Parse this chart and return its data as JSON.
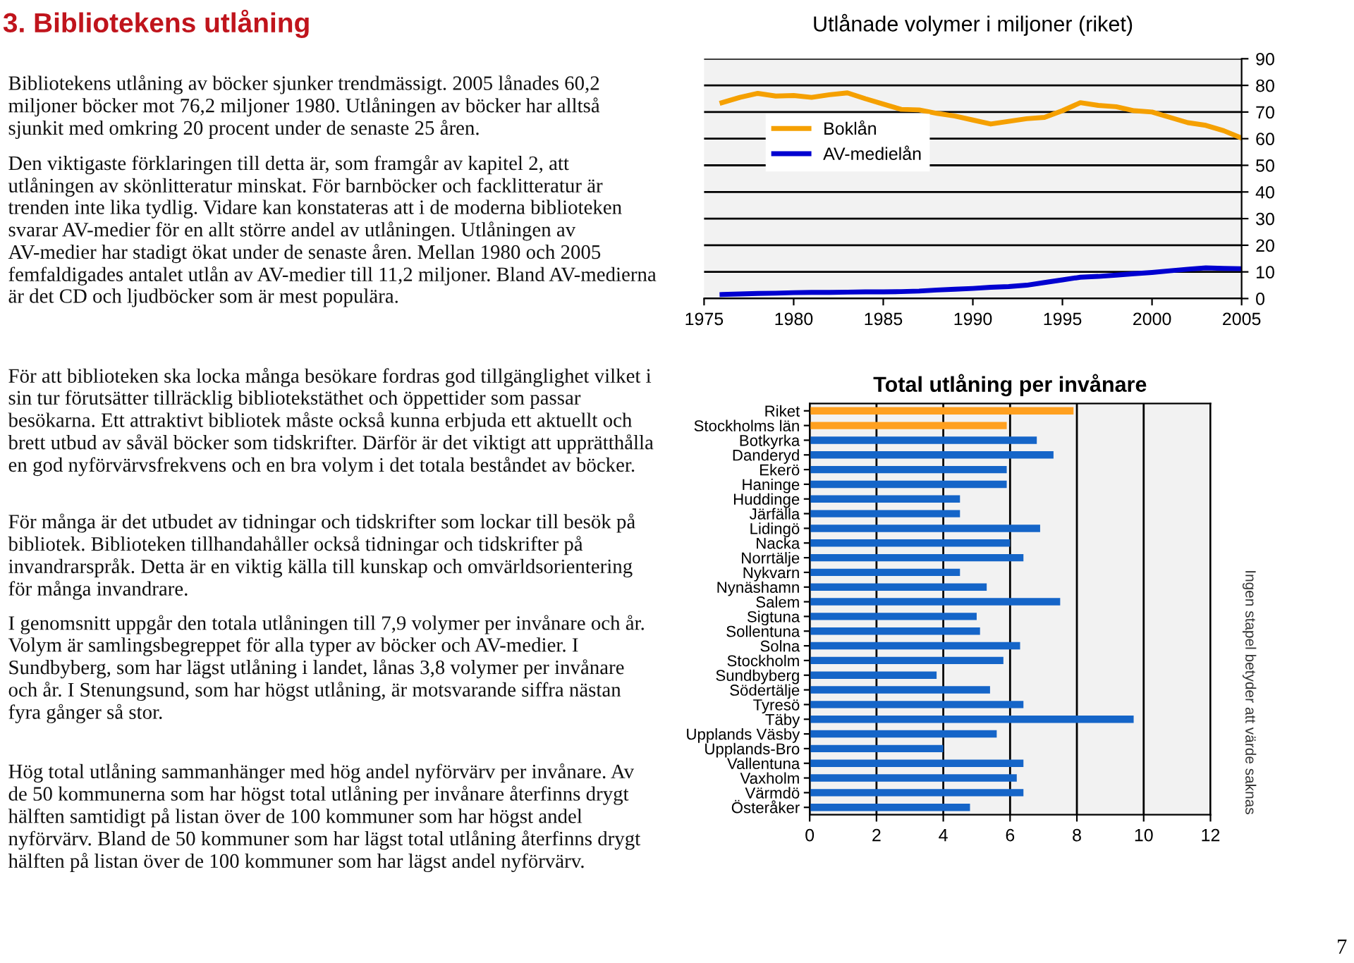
{
  "chart_data": [
    {
      "type": "other",
      "title": "3. Bibliotekens utlåning",
      "annotations": [
        "Bibliotekens utlåning av böcker sjunker trendmässigt. 2005 lånades 60,2 miljoner böcker mot 76,2 miljoner 1980. Utlåningen av böcker har alltså sjunkit med omkring 20 procent under de senaste 25 åren.",
        "Den viktigaste förklaringen till detta är, som framgår av kapitel 2, att utlåningen av skönlitteratur minskat. För barnböcker och facklitteratur är trenden inte lika tydlig. Vidare kan konstateras att i de moderna biblioteken svarar AV-medier för en allt större andel av utlåningen. Utlåningen av AV-medier har stadigt ökat under de senaste åren. Mellan 1980 och 2005 femfaldigades antalet utlån av AV-medier till 11,2 miljoner. Bland AV-medierna är det CD och ljudböcker som är mest populära.",
        "För att biblioteken ska locka många besökare fordras god tillgänglighet vilket i sin tur förutsätter tillräcklig bibliotekstäthet och öppettider som passar besökarna. Ett attraktivt bibliotek måste också kunna erbjuda ett aktuellt och brett utbud av såväl böcker som tidskrifter. Därför är det viktigt att upprätthålla en god nyförvärvsfrekvens och en bra volym i det totala beståndet av böcker.",
        "För många är det utbudet av tidningar och tidskrifter som lockar till besök på bibliotek. Biblioteken tillhandahåller också tidningar och tidskrifter på invandrarspråk. Detta är en viktig källa till kunskap och omvärldsorientering för många invandrare.",
        "I genomsnitt uppgår den totala utlåningen till 7,9 volymer per invånare och år. Volym är samlingsbegreppet för alla typer av böcker och AV-medier. I Sundbyberg, som har lägst utlåning i landet, lånas 3,8 volymer per invånare och år. I Stenungsund, som har högst utlåning, är motsvarande siffra nästan fyra gånger så stor.",
        "Hög total utlåning sammanhänger med hög andel nyförvärv per invånare. Av de 50 kommunerna som har högst total utlåning per invånare återfinns drygt hälften samtidigt på listan över de 100 kommuner som har högst andel nyförvärv. Bland de 50 kommuner som har lägst total utlåning återfinns drygt hälften på listan över de 100 kommuner som har lägst andel nyförvärv.",
        "7"
      ]
    },
    {
      "type": "line",
      "title": "Utlånade volymer i miljoner (riket)",
      "x": [
        1976,
        1977,
        1978,
        1979,
        1980,
        1981,
        1982,
        1983,
        1984,
        1985,
        1986,
        1987,
        1988,
        1989,
        1990,
        1991,
        1992,
        1993,
        1994,
        1995,
        1996,
        1997,
        1998,
        1999,
        2000,
        2001,
        2002,
        2003,
        2004,
        2005
      ],
      "series": [
        {
          "name": "Boklån",
          "color": "#f5a000",
          "values": [
            73.5,
            75.5,
            77,
            76,
            76.2,
            75.5,
            76.5,
            77.2,
            75,
            73,
            71,
            70.8,
            69.5,
            68.5,
            67,
            65.5,
            66.5,
            67.5,
            68,
            70.5,
            73.5,
            72.5,
            72,
            70.5,
            70,
            68,
            66,
            65,
            63,
            60.2
          ]
        },
        {
          "name": "AV-medielån",
          "color": "#0000d0",
          "values": [
            1.5,
            1.7,
            1.9,
            2,
            2.2,
            2.3,
            2.3,
            2.4,
            2.5,
            2.5,
            2.6,
            2.8,
            3.2,
            3.5,
            3.8,
            4.2,
            4.5,
            5,
            6,
            7,
            8,
            8.3,
            8.8,
            9.3,
            9.8,
            10.4,
            11,
            11.5,
            11.3,
            11.2
          ]
        }
      ],
      "xlim": [
        1975,
        2005
      ],
      "xticks": [
        1975,
        1980,
        1985,
        1990,
        1995,
        2000,
        2005
      ],
      "ylim": [
        0,
        90
      ],
      "yticks": [
        0,
        10,
        20,
        30,
        40,
        50,
        60,
        70,
        80,
        90
      ],
      "grid": "y",
      "legend": "left",
      "line_style": "solid",
      "marker": "none"
    },
    {
      "type": "bar",
      "orientation": "horizontal",
      "title": "Total utlåning per invånare",
      "categories": [
        "Riket",
        "Stockholms län",
        "Botkyrka",
        "Danderyd",
        "Ekerö",
        "Haninge",
        "Huddinge",
        "Järfälla",
        "Lidingö",
        "Nacka",
        "Norrtälje",
        "Nykvarn",
        "Nynäshamn",
        "Salem",
        "Sigtuna",
        "Sollentuna",
        "Solna",
        "Stockholm",
        "Sundbyberg",
        "Södertälje",
        "Tyresö",
        "Täby",
        "Upplands Väsby",
        "Upplands-Bro",
        "Vallentuna",
        "Vaxholm",
        "Värmdö",
        "Österåker"
      ],
      "values": [
        7.9,
        5.9,
        6.8,
        7.3,
        5.9,
        5.9,
        4.5,
        4.5,
        6.9,
        6.0,
        6.4,
        4.5,
        5.3,
        7.5,
        5.0,
        5.1,
        6.3,
        5.8,
        3.8,
        5.4,
        6.4,
        9.7,
        5.6,
        4.0,
        6.4,
        6.2,
        6.4,
        4.8
      ],
      "colors": [
        "#ffa020",
        "#ffa020",
        "#1565c8",
        "#1565c8",
        "#1565c8",
        "#1565c8",
        "#1565c8",
        "#1565c8",
        "#1565c8",
        "#1565c8",
        "#1565c8",
        "#1565c8",
        "#1565c8",
        "#1565c8",
        "#1565c8",
        "#1565c8",
        "#1565c8",
        "#1565c8",
        "#1565c8",
        "#1565c8",
        "#1565c8",
        "#1565c8",
        "#1565c8",
        "#1565c8",
        "#1565c8",
        "#1565c8",
        "#1565c8",
        "#1565c8"
      ],
      "xlim": [
        0,
        12
      ],
      "xticks": [
        0,
        2,
        4,
        6,
        8,
        10,
        12
      ],
      "grid": "x",
      "annotations": [
        "Ingen stapel betyder att värde saknas"
      ]
    }
  ]
}
